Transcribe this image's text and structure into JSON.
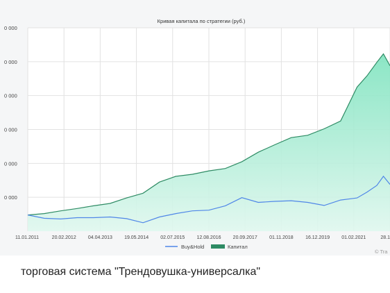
{
  "caption": "торговая система \"Трендовушка-универсалка\"",
  "watermark": "© Tra",
  "colors": {
    "capital_line": "#2e8b64",
    "capital_fill_top": "#7fe3bf",
    "capital_fill_bottom": "#dff7ee",
    "buyhold_line": "#4f86e8",
    "grid": "#e2e2e2",
    "plot_bg": "#ffffff",
    "frame_bg": "#f5f6f7"
  },
  "chart_data": {
    "type": "area",
    "title": "Кривая капитала по стратегии (руб.)",
    "xlabel": "",
    "ylabel": "",
    "x_tick_labels": [
      "11.01.2011",
      "20.02.2012",
      "04.04.2013",
      "19.05.2014",
      "02.07.2015",
      "12.08.2016",
      "20.09.2017",
      "01.11.2018",
      "16.12.2019",
      "01.02.2021",
      "28.1"
    ],
    "y_tick_labels": [
      "0 000",
      "0 000",
      "0 000",
      "0 000",
      "0 000",
      "0 000"
    ],
    "grid": true,
    "legend_position": "bottom-center",
    "x": [
      2011.0,
      2011.5,
      2012.0,
      2012.5,
      2013.0,
      2013.5,
      2014.0,
      2014.5,
      2015.0,
      2015.5,
      2016.0,
      2016.5,
      2017.0,
      2017.5,
      2018.0,
      2018.5,
      2019.0,
      2019.5,
      2020.0,
      2020.5,
      2021.0,
      2021.3,
      2021.6,
      2021.8,
      2022.0
    ],
    "series": [
      {
        "name": "Capital",
        "values": [
          0.48,
          0.52,
          0.6,
          0.67,
          0.75,
          0.82,
          0.98,
          1.12,
          1.45,
          1.62,
          1.68,
          1.78,
          1.85,
          2.05,
          2.33,
          2.55,
          2.76,
          2.83,
          3.02,
          3.25,
          4.25,
          4.58,
          4.98,
          5.23,
          4.88
        ]
      },
      {
        "name": "Buy&Hold",
        "values": [
          0.48,
          0.38,
          0.36,
          0.4,
          0.4,
          0.42,
          0.37,
          0.25,
          0.42,
          0.52,
          0.6,
          0.62,
          0.75,
          0.99,
          0.85,
          0.88,
          0.9,
          0.85,
          0.76,
          0.92,
          0.98,
          1.15,
          1.35,
          1.62,
          1.38
        ]
      }
    ],
    "legend": [
      "Buy&Hold",
      "Капитал"
    ]
  }
}
